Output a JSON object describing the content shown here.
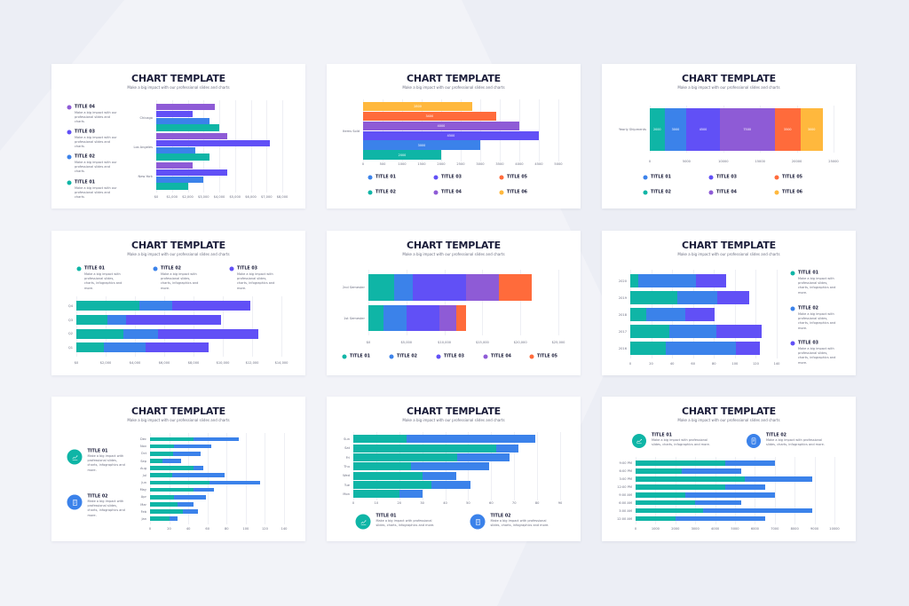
{
  "colors": {
    "background": "#eceef5",
    "teal": "#0fb5a6",
    "blue": "#3b82ea",
    "indigo": "#6150f6",
    "purple": "#8e5bd6",
    "orange": "#ff6b3b",
    "yellow": "#ffb83d",
    "title": "#1b1d3a"
  },
  "slides": [
    {
      "title": "CHART TEMPLATE",
      "subtitle": "Make a big impact with our professional slides and charts",
      "legend": [
        {
          "label": "TITLE 04",
          "color": "#8e5bd6",
          "desc": "Make a big impact with our professional slides and charts"
        },
        {
          "label": "TITLE 03",
          "color": "#6150f6",
          "desc": "Make a big impact with our professional slides and charts"
        },
        {
          "label": "TITLE 02",
          "color": "#3b82ea",
          "desc": "Make a big impact with our professional slides and charts"
        },
        {
          "label": "TITLE 01",
          "color": "#0fb5a6",
          "desc": "Make a big impact with our professional slides and charts"
        }
      ]
    },
    {
      "title": "CHART TEMPLATE",
      "subtitle": "Make a big impact with our professional slides and charts",
      "legend": [
        {
          "label": "TITLE 01",
          "color": "#3b82ea"
        },
        {
          "label": "TITLE 03",
          "color": "#6150f6"
        },
        {
          "label": "TITLE 05",
          "color": "#ff6b3b"
        },
        {
          "label": "TITLE 02",
          "color": "#0fb5a6"
        },
        {
          "label": "TITLE 04",
          "color": "#8e5bd6"
        },
        {
          "label": "TITLE 06",
          "color": "#ffb83d"
        }
      ]
    },
    {
      "title": "CHART TEMPLATE",
      "subtitle": "Make a big impact with our professional slides and charts",
      "legend": [
        {
          "label": "TITLE 01",
          "color": "#3b82ea"
        },
        {
          "label": "TITLE 03",
          "color": "#6150f6"
        },
        {
          "label": "TITLE 05",
          "color": "#ff6b3b"
        },
        {
          "label": "TITLE 02",
          "color": "#0fb5a6"
        },
        {
          "label": "TITLE 04",
          "color": "#8e5bd6"
        },
        {
          "label": "TITLE 06",
          "color": "#ffb83d"
        }
      ]
    },
    {
      "title": "CHART TEMPLATE",
      "subtitle": "Make a big impact with our professional slides and charts",
      "legend": [
        {
          "label": "TITLE 01",
          "color": "#0fb5a6",
          "desc": "Make a big impact with professional slides, charts, infographics and more."
        },
        {
          "label": "TITLE 02",
          "color": "#3b82ea",
          "desc": "Make a big impact with professional slides, charts, infographics and more."
        },
        {
          "label": "TITLE 03",
          "color": "#6150f6",
          "desc": "Make a big impact with professional slides, charts, infographics and more."
        }
      ]
    },
    {
      "title": "CHART TEMPLATE",
      "subtitle": "Make a big impact with our professional slides and charts",
      "legend": [
        {
          "label": "TITLE 01",
          "color": "#0fb5a6"
        },
        {
          "label": "TITLE 02",
          "color": "#3b82ea"
        },
        {
          "label": "TITLE 03",
          "color": "#6150f6"
        },
        {
          "label": "TITLE 04",
          "color": "#8e5bd6"
        },
        {
          "label": "TITLE 05",
          "color": "#ff6b3b"
        }
      ]
    },
    {
      "title": "CHART TEMPLATE",
      "subtitle": "Make a big impact with our professional slides and charts",
      "legend": [
        {
          "label": "TITLE 01",
          "color": "#0fb5a6",
          "desc": "Make a big impact with professional slides, charts, infographics and more."
        },
        {
          "label": "TITLE 02",
          "color": "#3b82ea",
          "desc": "Make a big impact with professional slides, charts, infographics and more."
        },
        {
          "label": "TITLE 03",
          "color": "#6150f6",
          "desc": "Make a big impact with professional slides, charts, infographics and more."
        }
      ]
    },
    {
      "title": "CHART TEMPLATE",
      "subtitle": "Make a big impact with our professional slides and charts",
      "legend": [
        {
          "label": "TITLE 01",
          "color": "#0fb5a6",
          "icon": "chart-hand-icon",
          "desc": "Make a big impact with professional slides, charts, infographics and more."
        },
        {
          "label": "TITLE 02",
          "color": "#3b82ea",
          "icon": "document-icon",
          "desc": "Make a big impact with professional slides, charts, infographics and more."
        }
      ]
    },
    {
      "title": "CHART TEMPLATE",
      "subtitle": "Make a big impact with our professional slides and charts",
      "legend": [
        {
          "label": "TITLE 01",
          "color": "#0fb5a6",
          "icon": "chart-hand-icon",
          "desc": "Make a big impact with professional slides, charts, infographics and more."
        },
        {
          "label": "TITLE 02",
          "color": "#3b82ea",
          "icon": "document-icon",
          "desc": "Make a big impact with professional slides, charts, infographics and more."
        }
      ]
    },
    {
      "title": "CHART TEMPLATE",
      "subtitle": "Make a big impact with our professional slides and charts",
      "legend": [
        {
          "label": "TITLE 01",
          "color": "#0fb5a6",
          "icon": "chart-hand-icon",
          "desc": "Make a big impact with professional slides, charts, infographics and more."
        },
        {
          "label": "TITLE 02",
          "color": "#3b82ea",
          "icon": "document-icon",
          "desc": "Make a big impact with professional slides, charts, infographics and more."
        }
      ]
    }
  ],
  "chart_data": [
    {
      "type": "bar",
      "orientation": "horizontal",
      "stacked": false,
      "grid": true,
      "categories": [
        "Chicago",
        "Los Angeles",
        "New York"
      ],
      "series": [
        {
          "name": "TITLE 04",
          "color": "#8e5bd6",
          "values": [
            3700,
            4500,
            2300
          ]
        },
        {
          "name": "TITLE 03",
          "color": "#6150f6",
          "values": [
            2300,
            7200,
            4500
          ]
        },
        {
          "name": "TITLE 02",
          "color": "#3b82ea",
          "values": [
            3400,
            2500,
            3000
          ]
        },
        {
          "name": "TITLE 01",
          "color": "#0fb5a6",
          "values": [
            4000,
            3400,
            2000
          ]
        }
      ],
      "xlim": [
        0,
        8000
      ],
      "xticks": [
        "$0",
        "$1,000",
        "$2,000",
        "$3,000",
        "$4,000",
        "$5,000",
        "$6,000",
        "$7,000",
        "$8,000"
      ],
      "legend": "left"
    },
    {
      "type": "bar",
      "orientation": "horizontal",
      "stacked": false,
      "grid": true,
      "value_labels": true,
      "categories": [
        "Items Sold"
      ],
      "series": [
        {
          "name": "TITLE 06",
          "color": "#ffb83d",
          "values": [
            2800
          ]
        },
        {
          "name": "TITLE 05",
          "color": "#ff6b3b",
          "values": [
            3400
          ]
        },
        {
          "name": "TITLE 04",
          "color": "#8e5bd6",
          "values": [
            4000
          ]
        },
        {
          "name": "TITLE 03",
          "color": "#6150f6",
          "values": [
            4500
          ]
        },
        {
          "name": "TITLE 01",
          "color": "#3b82ea",
          "values": [
            3000
          ]
        },
        {
          "name": "TITLE 02",
          "color": "#0fb5a6",
          "values": [
            2000
          ]
        }
      ],
      "xlim": [
        0,
        5000
      ],
      "xticks": [
        "0",
        "500",
        "1000",
        "1500",
        "2000",
        "2500",
        "3000",
        "3500",
        "4000",
        "4500",
        "5000"
      ],
      "legend": "bottom"
    },
    {
      "type": "bar",
      "orientation": "horizontal",
      "stacked": true,
      "grid": true,
      "value_labels": true,
      "categories": [
        "Yearly Shipments"
      ],
      "series": [
        {
          "name": "TITLE 02",
          "color": "#0fb5a6",
          "values": [
            2000
          ]
        },
        {
          "name": "TITLE 01",
          "color": "#3b82ea",
          "values": [
            3000
          ]
        },
        {
          "name": "TITLE 03",
          "color": "#6150f6",
          "values": [
            4500
          ]
        },
        {
          "name": "TITLE 04",
          "color": "#8e5bd6",
          "values": [
            7500
          ]
        },
        {
          "name": "TITLE 05",
          "color": "#ff6b3b",
          "values": [
            3500
          ]
        },
        {
          "name": "TITLE 06",
          "color": "#ffb83d",
          "values": [
            3000
          ]
        }
      ],
      "xlim": [
        0,
        25000
      ],
      "xticks": [
        "0",
        "5000",
        "10000",
        "15000",
        "20000",
        "25000"
      ],
      "legend": "bottom"
    },
    {
      "type": "bar",
      "orientation": "horizontal",
      "stacked": true,
      "grid": true,
      "categories": [
        "Q4",
        "Q3",
        "Q2",
        "Q1"
      ],
      "series": [
        {
          "name": "TITLE 01",
          "color": "#0fb5a6",
          "values": [
            4300,
            2150,
            3200,
            1900
          ]
        },
        {
          "name": "TITLE 02",
          "color": "#3b82ea",
          "values": [
            2250,
            1250,
            2400,
            2850
          ]
        },
        {
          "name": "TITLE 03",
          "color": "#6150f6",
          "values": [
            5300,
            6450,
            6850,
            4250
          ]
        }
      ],
      "xlim": [
        0,
        14000
      ],
      "xticks": [
        "$0",
        "$2,000",
        "$4,000",
        "$6,000",
        "$8,000",
        "$10,000",
        "$12,000",
        "$14,000"
      ],
      "legend": "top"
    },
    {
      "type": "bar",
      "orientation": "horizontal",
      "stacked": true,
      "grid": true,
      "categories": [
        "2nd Semester",
        "1st Semester"
      ],
      "series": [
        {
          "name": "TITLE 01",
          "color": "#0fb5a6",
          "values": [
            3400,
            2000
          ]
        },
        {
          "name": "TITLE 02",
          "color": "#3b82ea",
          "values": [
            2400,
            3000
          ]
        },
        {
          "name": "TITLE 03",
          "color": "#6150f6",
          "values": [
            7000,
            4300
          ]
        },
        {
          "name": "TITLE 04",
          "color": "#8e5bd6",
          "values": [
            4400,
            2300
          ]
        },
        {
          "name": "TITLE 05",
          "color": "#ff6b3b",
          "values": [
            4300,
            1200
          ]
        }
      ],
      "xlim": [
        0,
        25000
      ],
      "xticks": [
        "$0",
        "$5,000",
        "$10,000",
        "$15,000",
        "$20,000",
        "$25,000"
      ],
      "legend": "bottom"
    },
    {
      "type": "bar",
      "orientation": "horizontal",
      "stacked": true,
      "grid": true,
      "categories": [
        "2020",
        "2019",
        "2018",
        "2017",
        "2016"
      ],
      "series": [
        {
          "name": "TITLE 01",
          "color": "#0fb5a6",
          "values": [
            8,
            45,
            15,
            37,
            34
          ]
        },
        {
          "name": "TITLE 02",
          "color": "#3b82ea",
          "values": [
            55,
            38,
            38,
            45,
            67
          ]
        },
        {
          "name": "TITLE 03",
          "color": "#6150f6",
          "values": [
            29,
            31,
            28,
            44,
            23
          ]
        }
      ],
      "xlim": [
        0,
        140
      ],
      "xticks": [
        "0",
        "20",
        "40",
        "60",
        "80",
        "100",
        "120",
        "140"
      ],
      "legend": "right"
    },
    {
      "type": "bar",
      "orientation": "horizontal",
      "stacked": true,
      "grid": true,
      "categories": [
        "Dec",
        "Nov",
        "Oct",
        "Sep",
        "Aug",
        "Jul",
        "Jun",
        "May",
        "Apr",
        "Mar",
        "Feb",
        "Jan"
      ],
      "series": [
        {
          "name": "TITLE 01",
          "color": "#0fb5a6",
          "values": [
            45,
            25,
            24,
            13,
            45,
            23,
            62,
            45,
            25,
            29,
            34,
            20
          ]
        },
        {
          "name": "TITLE 02",
          "color": "#3b82ea",
          "values": [
            48,
            39,
            29,
            19,
            11,
            55,
            53,
            22,
            33,
            16,
            16,
            9
          ]
        }
      ],
      "xlim": [
        0,
        140
      ],
      "xticks": [
        "0",
        "20",
        "40",
        "60",
        "80",
        "100",
        "120",
        "140"
      ],
      "legend": "left"
    },
    {
      "type": "bar",
      "orientation": "horizontal",
      "stacked": true,
      "grid": true,
      "categories": [
        "Sun",
        "Sat",
        "Fri",
        "Thu",
        "Wed",
        "Tue",
        "Mon"
      ],
      "series": [
        {
          "name": "TITLE 01",
          "color": "#0fb5a6",
          "values": [
            23,
            62,
            45,
            25,
            30,
            34,
            20
          ]
        },
        {
          "name": "TITLE 02",
          "color": "#3b82ea",
          "values": [
            56,
            10,
            23,
            34,
            15,
            17,
            10
          ]
        }
      ],
      "xlim": [
        0,
        90
      ],
      "xticks": [
        "0",
        "10",
        "20",
        "30",
        "40",
        "50",
        "60",
        "70",
        "80",
        "90"
      ],
      "legend": "bottom"
    },
    {
      "type": "bar",
      "orientation": "horizontal",
      "stacked": true,
      "grid": true,
      "categories": [
        "9:00 PM",
        "6:00 PM",
        "3:00 PM",
        "12:00 PM",
        "9:00 AM",
        "6:00 AM",
        "3:00 AM",
        "12:00 AM"
      ],
      "series": [
        {
          "name": "TITLE 01",
          "color": "#0fb5a6",
          "values": [
            4500,
            2300,
            5500,
            4500,
            2500,
            3000,
            3400,
            2000
          ]
        },
        {
          "name": "TITLE 02",
          "color": "#3b82ea",
          "values": [
            2500,
            3000,
            3400,
            2000,
            4500,
            2300,
            5500,
            4500
          ]
        }
      ],
      "xlim": [
        0,
        10000
      ],
      "xticks": [
        "0",
        "1000",
        "2000",
        "3000",
        "4000",
        "5000",
        "6000",
        "7000",
        "8000",
        "9000",
        "10000"
      ],
      "legend": "top"
    }
  ]
}
